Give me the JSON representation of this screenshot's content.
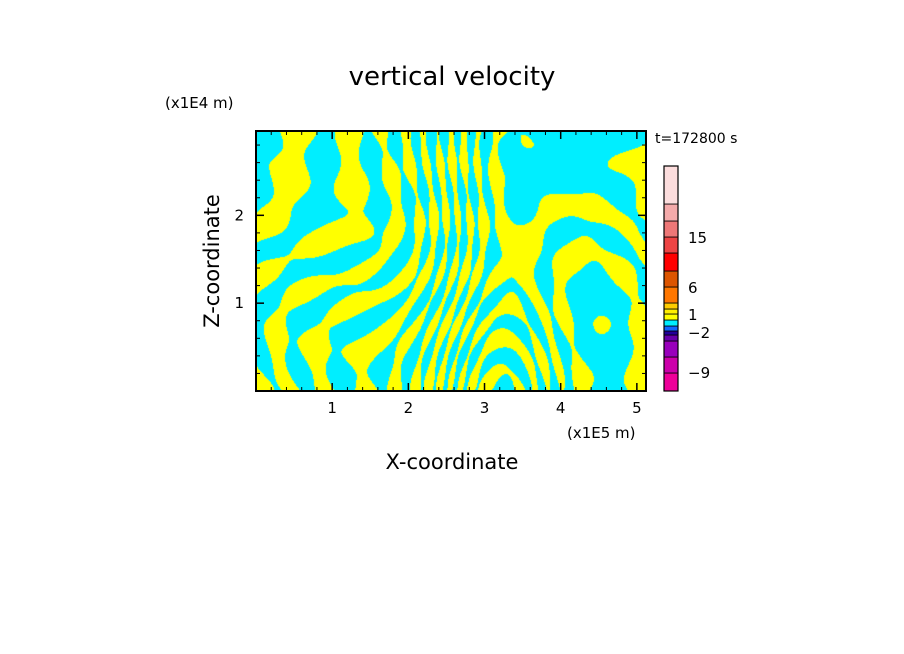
{
  "chart_data": {
    "type": "heatmap",
    "title": "vertical velocity",
    "xlabel": "X-coordinate",
    "ylabel": "Z-coordinate",
    "x_unit": "(x1E5 m)",
    "y_unit": "(x1E4 m)",
    "time_label": "t=172800 s",
    "xlim": [
      0,
      5.12
    ],
    "ylim": [
      0,
      2.96
    ],
    "x_ticks": [
      {
        "value": 1,
        "label": "1"
      },
      {
        "value": 2,
        "label": "2"
      },
      {
        "value": 3,
        "label": "3"
      },
      {
        "value": 4,
        "label": "4"
      },
      {
        "value": 5,
        "label": "5"
      }
    ],
    "y_ticks": [
      {
        "value": 1,
        "label": "1"
      },
      {
        "value": 2,
        "label": "2"
      }
    ],
    "field_colors": {
      "positive": "#ffff00",
      "negative": "#00eeff"
    },
    "colorbar": {
      "levels": [
        {
          "color": "#ee0099"
        },
        {
          "color": "#cc00aa"
        },
        {
          "color": "#9900bb"
        },
        {
          "color": "#6600aa"
        },
        {
          "color": "#220099"
        },
        {
          "color": "#1166ff"
        },
        {
          "color": "#00eeff"
        },
        {
          "color": "#ffff00"
        },
        {
          "color": "#ffee00"
        },
        {
          "color": "#ffcc00"
        },
        {
          "color": "#ff7700"
        },
        {
          "color": "#dd5500"
        },
        {
          "color": "#ff0000"
        },
        {
          "color": "#ee4444"
        },
        {
          "color": "#ee7777"
        },
        {
          "color": "#f4aaaa"
        },
        {
          "color": "#fcdddd"
        }
      ],
      "tick_labels": [
        {
          "value": 15,
          "label": "15"
        },
        {
          "value": 6,
          "label": "6"
        },
        {
          "value": 1,
          "label": "1"
        },
        {
          "value": -2,
          "label": "−2"
        },
        {
          "value": -9,
          "label": "−9"
        }
      ]
    }
  }
}
